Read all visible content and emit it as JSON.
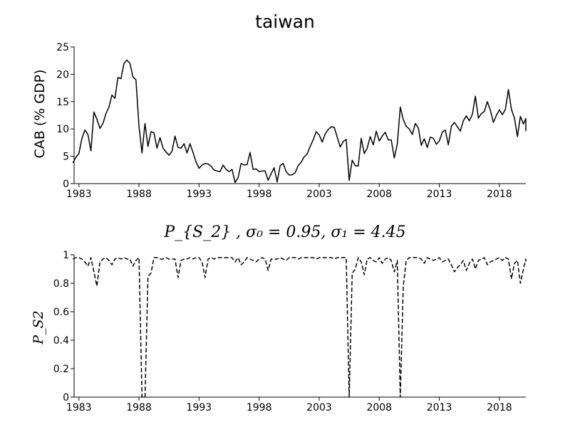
{
  "chart_data": [
    {
      "type": "line",
      "title": "taiwan",
      "xlabel": "",
      "ylabel": "CAB (% GDP)",
      "xlim": [
        1982.6,
        2020.2
      ],
      "ylim": [
        0,
        25
      ],
      "xticks": [
        "1983",
        "1988",
        "1993",
        "1998",
        "2003",
        "2008",
        "2013",
        "2018"
      ],
      "yticks": [
        "0",
        "5",
        "10",
        "15",
        "20",
        "25"
      ],
      "grid": false,
      "series": [
        {
          "line_style": "solid",
          "color": "#000000",
          "start": "1982Q3",
          "frequency": "quarterly",
          "values": [
            3.8,
            4.8,
            5.5,
            8.3,
            9.8,
            9.0,
            6.0,
            13.1,
            11.8,
            10.1,
            11.0,
            12.8,
            14.0,
            16.2,
            15.6,
            19.4,
            19.2,
            22.0,
            22.6,
            22.0,
            19.5,
            19.0,
            10.5,
            5.6,
            11.0,
            6.8,
            9.5,
            9.3,
            6.5,
            8.4,
            6.5,
            5.8,
            5.2,
            5.9,
            8.7,
            6.6,
            6.5,
            7.3,
            5.6,
            7.3,
            5.7,
            4.0,
            2.8,
            3.4,
            3.7,
            3.6,
            3.2,
            2.5,
            2.3,
            2.2,
            3.4,
            2.6,
            2.2,
            2.6,
            0.2,
            1.1,
            3.7,
            3.4,
            3.5,
            5.7,
            2.6,
            2.7,
            2.2,
            2.3,
            2.3,
            0.6,
            1.8,
            2.9,
            0.3,
            3.3,
            3.7,
            2.2,
            1.6,
            1.6,
            2.0,
            3.3,
            3.9,
            4.9,
            5.4,
            6.8,
            8.0,
            9.5,
            8.9,
            7.6,
            9.1,
            9.9,
            10.4,
            10.3,
            8.5,
            6.7,
            7.7,
            8.1,
            0.6,
            4.3,
            3.3,
            3.2,
            8.3,
            5.5,
            6.5,
            8.6,
            7.1,
            9.6,
            7.8,
            8.7,
            9.4,
            8.0,
            8.0,
            4.7,
            7.2,
            14.0,
            11.7,
            10.5,
            10.0,
            9.0,
            11.0,
            10.2,
            7.0,
            8.2,
            6.6,
            8.5,
            8.3,
            7.2,
            7.8,
            9.4,
            9.8,
            7.1,
            10.5,
            11.2,
            10.4,
            9.6,
            11.5,
            12.4,
            11.5,
            12.7,
            16.0,
            12.0,
            12.8,
            13.2,
            15.0,
            13.4,
            11.2,
            12.5,
            13.5,
            12.6,
            13.6,
            17.2,
            13.6,
            12.0,
            8.6,
            12.3,
            10.9,
            11.9,
            10.2,
            9.6
          ]
        }
      ]
    },
    {
      "type": "line",
      "title": "P_S2, σ0 = 0.95, σ1 = 4.45",
      "title_display": "P_{S_2} , σ₀ = 0.95, σ₁ = 4.45",
      "xlabel": "",
      "ylabel": "P_S2",
      "xlim": [
        1982.6,
        2020.2
      ],
      "ylim": [
        0,
        1
      ],
      "xticks": [
        "1983",
        "1988",
        "1993",
        "1998",
        "2003",
        "2008",
        "2013",
        "2018"
      ],
      "yticks": [
        "0",
        "0.2",
        "0.4",
        "0.6",
        "0.8",
        "1"
      ],
      "grid": false,
      "series": [
        {
          "line_style": "dashed",
          "color": "#000000",
          "start": "1982Q3",
          "frequency": "quarterly",
          "values": [
            0.97,
            0.98,
            0.98,
            0.97,
            0.95,
            0.92,
            0.98,
            0.88,
            0.78,
            0.95,
            0.97,
            0.98,
            0.96,
            0.93,
            0.97,
            0.98,
            0.97,
            0.98,
            0.97,
            0.97,
            0.92,
            0.96,
            0.98,
            0.0,
            0.0,
            0.85,
            0.87,
            0.98,
            0.98,
            0.97,
            0.97,
            0.98,
            0.97,
            0.97,
            0.97,
            0.84,
            0.96,
            0.97,
            0.97,
            0.98,
            0.97,
            0.98,
            0.98,
            0.95,
            0.84,
            0.97,
            0.98,
            0.97,
            0.98,
            0.98,
            0.98,
            0.98,
            0.98,
            0.98,
            0.95,
            0.98,
            0.93,
            0.95,
            0.98,
            0.97,
            0.96,
            0.95,
            0.97,
            0.98,
            0.97,
            0.89,
            0.97,
            0.97,
            0.97,
            0.98,
            0.97,
            0.96,
            0.98,
            0.98,
            0.98,
            0.97,
            0.98,
            0.98,
            0.98,
            0.98,
            0.98,
            0.97,
            0.98,
            0.98,
            0.98,
            0.98,
            0.98,
            0.97,
            0.98,
            0.98,
            0.98,
            0.98,
            0.0,
            0.87,
            0.9,
            0.98,
            0.95,
            0.86,
            0.97,
            0.98,
            0.96,
            0.95,
            0.98,
            0.94,
            0.97,
            0.98,
            0.96,
            0.88,
            0.96,
            0.0,
            0.78,
            0.96,
            0.98,
            0.98,
            0.98,
            0.98,
            0.97,
            0.94,
            0.98,
            0.97,
            0.96,
            0.97,
            0.98,
            0.95,
            0.96,
            0.97,
            0.93,
            0.88,
            0.91,
            0.93,
            0.96,
            0.89,
            0.94,
            0.97,
            0.9,
            0.96,
            0.97,
            0.98,
            0.93,
            0.95,
            0.96,
            0.97,
            0.98,
            0.96,
            0.98,
            0.97,
            0.83,
            0.94,
            0.96,
            0.8,
            0.9,
            0.97,
            0.96,
            0.96,
            0.95
          ]
        }
      ]
    }
  ]
}
